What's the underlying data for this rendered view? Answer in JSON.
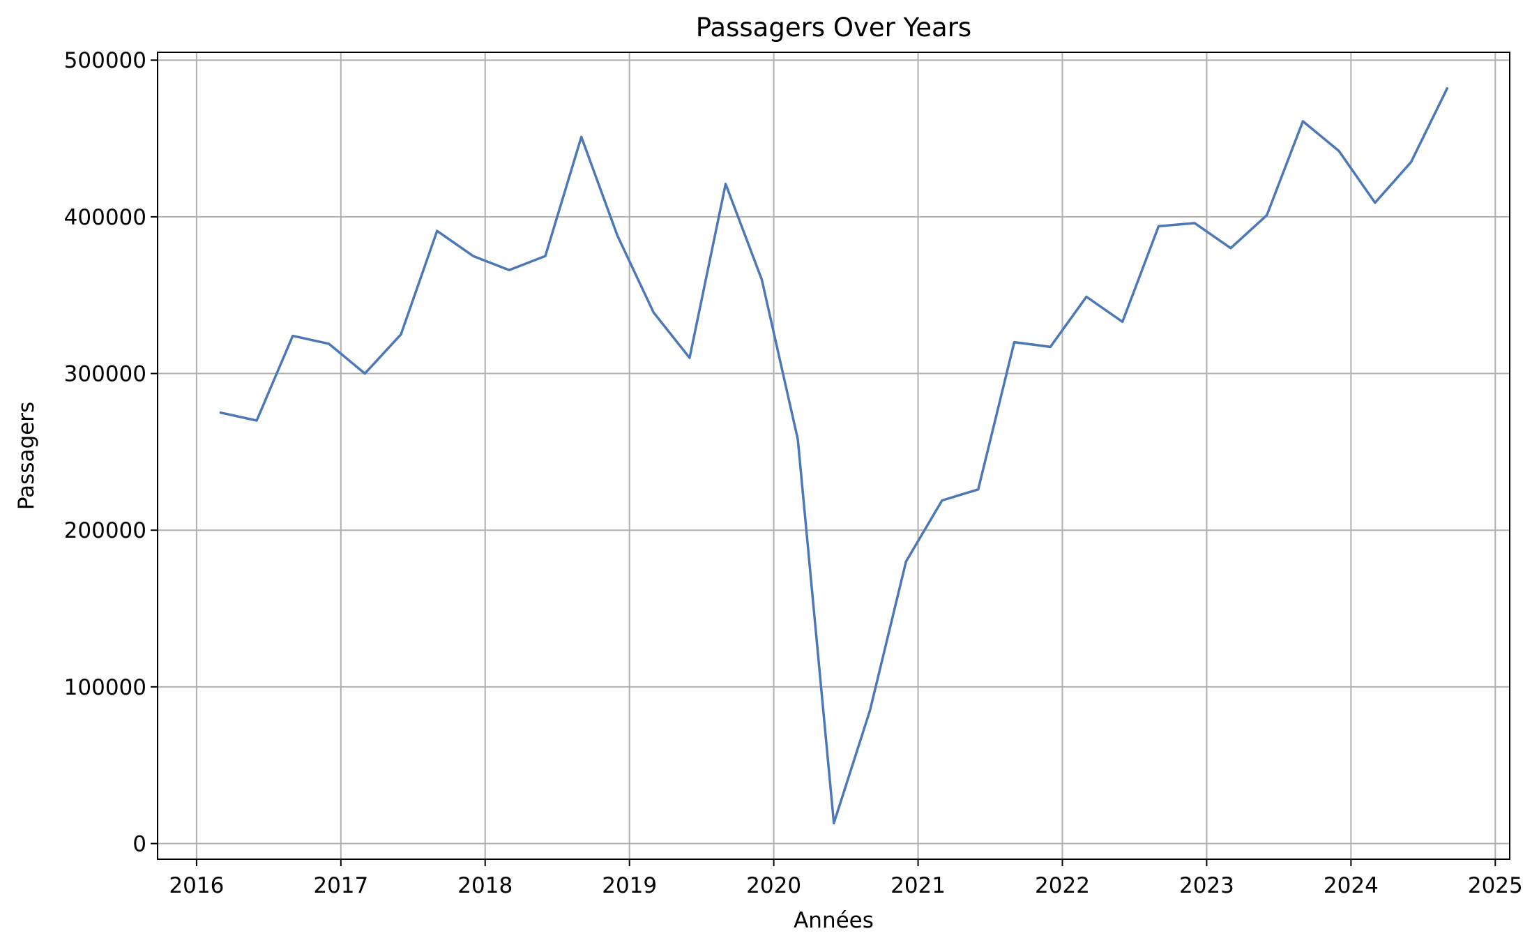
{
  "chart_data": {
    "type": "line",
    "title": "Passagers Over Years",
    "xlabel": "Années",
    "ylabel": "Passagers",
    "xlim": [
      2015.73,
      2025.1
    ],
    "ylim": [
      -10000,
      505000
    ],
    "x_ticks": [
      2016,
      2017,
      2018,
      2019,
      2020,
      2021,
      2022,
      2023,
      2024,
      2025
    ],
    "x_tick_labels": [
      "2016",
      "2017",
      "2018",
      "2019",
      "2020",
      "2021",
      "2022",
      "2023",
      "2024",
      "2025"
    ],
    "y_ticks": [
      0,
      100000,
      200000,
      300000,
      400000,
      500000
    ],
    "y_tick_labels": [
      "0",
      "100000",
      "200000",
      "300000",
      "400000",
      "500000"
    ],
    "grid": true,
    "line_color": "#4c78b7",
    "series": [
      {
        "x": [
          "2016-03",
          "2016-06",
          "2016-09",
          "2016-12",
          "2017-03",
          "2017-06",
          "2017-09",
          "2017-12",
          "2018-03",
          "2018-06",
          "2018-09",
          "2018-12",
          "2019-03",
          "2019-06",
          "2019-09",
          "2019-12",
          "2020-03",
          "2020-06",
          "2020-09",
          "2020-12",
          "2021-03",
          "2021-06",
          "2021-09",
          "2021-12",
          "2022-03",
          "2022-06",
          "2022-09",
          "2022-12",
          "2023-03",
          "2023-06",
          "2023-09",
          "2023-12",
          "2024-03",
          "2024-06",
          "2024-09"
        ],
        "values": [
          275000,
          270000,
          324000,
          319000,
          300000,
          325000,
          391000,
          375000,
          366000,
          375000,
          451000,
          388000,
          339000,
          310000,
          421000,
          360000,
          258000,
          13000,
          85000,
          180000,
          219000,
          226000,
          320000,
          317000,
          349000,
          333000,
          394000,
          396000,
          380000,
          401000,
          461000,
          442000,
          409000,
          435000,
          482000
        ]
      }
    ]
  }
}
